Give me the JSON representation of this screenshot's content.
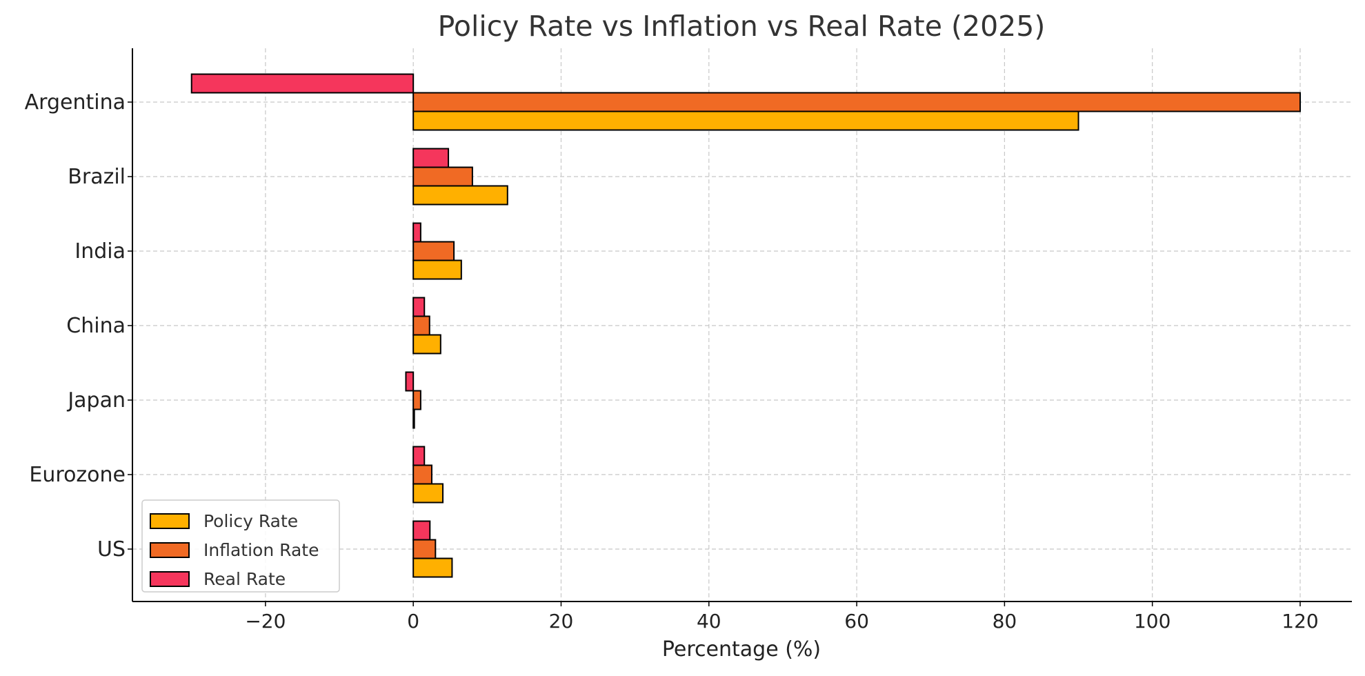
{
  "chart_data": {
    "type": "bar",
    "orientation": "horizontal",
    "title": "Policy Rate vs Inflation vs Real Rate (2025)",
    "xlabel": "Percentage (%)",
    "ylabel": "",
    "xlim": [
      -38,
      127
    ],
    "xticks": [
      -20,
      0,
      20,
      40,
      60,
      80,
      100,
      120
    ],
    "xtick_labels": [
      "−20",
      "0",
      "20",
      "40",
      "60",
      "80",
      "100",
      "120"
    ],
    "grid": true,
    "legend_position": "lower-left",
    "categories": [
      "US",
      "Eurozone",
      "Japan",
      "China",
      "India",
      "Brazil",
      "Argentina"
    ],
    "series": [
      {
        "name": "Policy Rate",
        "color": "#FFB000",
        "values": [
          5.25,
          4.0,
          0.1,
          3.7,
          6.5,
          12.75,
          90
        ]
      },
      {
        "name": "Inflation Rate",
        "color": "#F06A24",
        "values": [
          3.0,
          2.5,
          1.0,
          2.2,
          5.5,
          8.0,
          120
        ]
      },
      {
        "name": "Real Rate",
        "color": "#F5365C",
        "values": [
          2.25,
          1.5,
          -1.0,
          1.5,
          1.0,
          4.75,
          -30
        ]
      }
    ]
  }
}
